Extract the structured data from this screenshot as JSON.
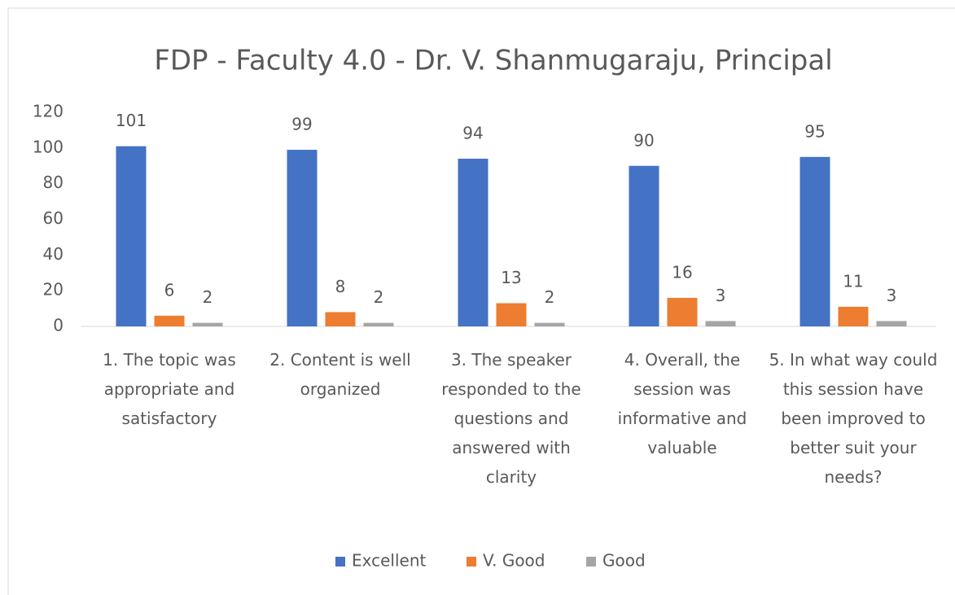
{
  "chart_data": {
    "type": "bar",
    "title": "FDP - Faculty 4.0 - Dr. V. Shanmugaraju, Principal",
    "categories": [
      "1. The topic was appropriate and satisfactory",
      "2. Content is well organized",
      "3. The speaker responded to the questions and answered with clarity",
      "4. Overall, the session was informative and valuable",
      "5. In what way could this session have been improved to better suit your needs?"
    ],
    "series": [
      {
        "name": "Excellent",
        "color": "#4472c4",
        "values": [
          101,
          99,
          94,
          90,
          95
        ]
      },
      {
        "name": "V. Good",
        "color": "#ed7d31",
        "values": [
          6,
          8,
          13,
          16,
          11
        ]
      },
      {
        "name": "Good",
        "color": "#a5a5a5",
        "values": [
          2,
          2,
          2,
          3,
          3
        ]
      }
    ],
    "ylim": [
      0,
      120
    ],
    "yticks": [
      0,
      20,
      40,
      60,
      80,
      100,
      120
    ],
    "grid": false,
    "legend": "bottom"
  }
}
